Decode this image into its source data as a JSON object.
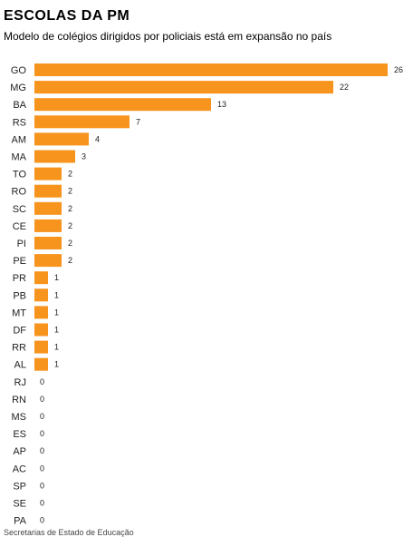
{
  "title": "ESCOLAS DA PM",
  "subtitle": "Modelo de colégios dirigidos por policiais está em expansão no país",
  "source": "Secretarias de Estado de Educação",
  "colors": {
    "bar": "#f7941d",
    "text": "#222222"
  },
  "chart_data": {
    "type": "bar",
    "orientation": "horizontal",
    "title": "ESCOLAS DA PM",
    "subtitle": "Modelo de colégios dirigidos por policiais está em expansão no país",
    "categories": [
      "GO",
      "MG",
      "BA",
      "RS",
      "AM",
      "MA",
      "TO",
      "RO",
      "SC",
      "CE",
      "PI",
      "PE",
      "PR",
      "PB",
      "MT",
      "DF",
      "RR",
      "AL",
      "RJ",
      "RN",
      "MS",
      "ES",
      "AP",
      "AC",
      "SP",
      "SE",
      "PA"
    ],
    "values": [
      26,
      22,
      13,
      7,
      4,
      3,
      2,
      2,
      2,
      2,
      2,
      2,
      1,
      1,
      1,
      1,
      1,
      1,
      0,
      0,
      0,
      0,
      0,
      0,
      0,
      0,
      0
    ],
    "xlim": [
      0,
      26
    ],
    "grid": false,
    "legend": "none",
    "data_labels": true
  }
}
